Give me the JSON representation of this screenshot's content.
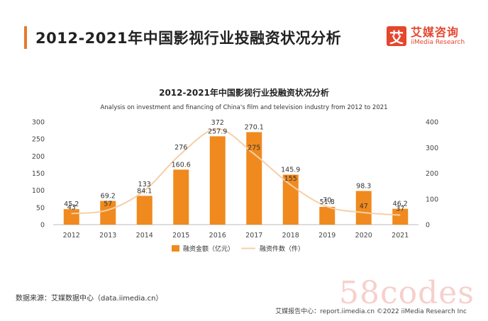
{
  "page": {
    "title": "2012-2021年中国影视行业投融资状况分析",
    "source": "数据来源：艾媒数据中心（data.iimedia.cn）",
    "footer": "艾媒报告中心：report.iimedia.cn ©2022 iiMedia Research Inc",
    "watermark": "58codes"
  },
  "logo": {
    "name_cn": "艾媒咨询",
    "name_en": "iiMedia Research",
    "mark": "艾"
  },
  "colors": {
    "bar": "#F08A1E",
    "line": "#F7CFA8",
    "accent": "#E5462E"
  },
  "chart_data": {
    "type": "bar",
    "title": "2012-2021年中国影视行业投融资状况分析",
    "subtitle": "Analysis on investment and financing of China's film and television industry from 2012 to 2021",
    "categories": [
      "2012",
      "2013",
      "2014",
      "2015",
      "2016",
      "2017",
      "2018",
      "2019",
      "2020",
      "2021"
    ],
    "series": [
      {
        "name": "融资金额（亿元）",
        "type": "bar",
        "axis": "left",
        "values": [
          45.2,
          69.2,
          84.1,
          160.6,
          257.9,
          270.1,
          145.9,
          51.8,
          98.3,
          46.2
        ]
      },
      {
        "name": "融资件数（件）",
        "type": "line",
        "axis": "right",
        "values": [
          43,
          57,
          133,
          276,
          372,
          275,
          155,
          70,
          47,
          37
        ]
      }
    ],
    "ylim_left": [
      0,
      300
    ],
    "yticks_left": [
      0,
      50,
      100,
      150,
      200,
      250,
      300
    ],
    "ylim_right": [
      0,
      400
    ],
    "yticks_right": [
      0,
      100,
      200,
      300,
      400
    ],
    "legend": "bottom-center",
    "grid": false
  }
}
